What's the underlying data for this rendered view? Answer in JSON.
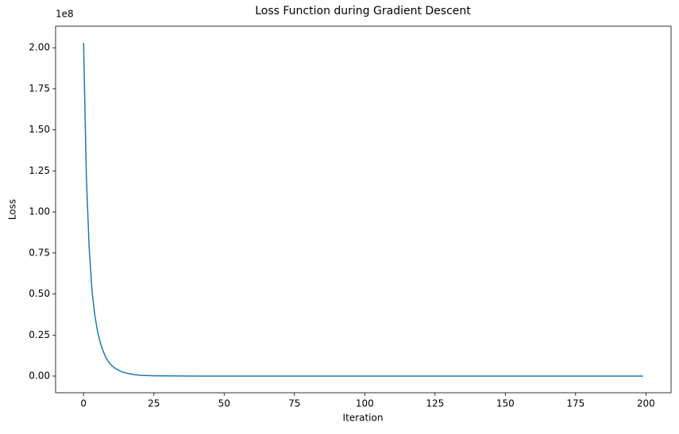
{
  "chart_data": {
    "type": "line",
    "title": "Loss Function during Gradient Descent",
    "x_label": "Iteration",
    "y_label": "Loss",
    "y_offset_label": "1e8",
    "x": [
      0,
      1,
      2,
      3,
      4,
      5,
      6,
      7,
      8,
      9,
      10,
      11,
      12,
      13,
      14,
      15,
      16,
      17,
      18,
      19,
      20,
      22,
      25,
      30,
      40,
      60,
      100,
      150,
      199
    ],
    "series": [
      {
        "name": "Loss",
        "color": "#1f77b4",
        "values": [
          2.03,
          1.21,
          0.78,
          0.52,
          0.37,
          0.27,
          0.2,
          0.15,
          0.11,
          0.085,
          0.065,
          0.05,
          0.04,
          0.031,
          0.024,
          0.019,
          0.015,
          0.012,
          0.009,
          0.007,
          0.005,
          0.0035,
          0.002,
          0.001,
          0.0002,
          0,
          0,
          0,
          0
        ]
      }
    ],
    "xlim": [
      -9.95,
      208.95
    ],
    "xticks": [
      0,
      25,
      50,
      75,
      100,
      125,
      150,
      175,
      200
    ],
    "ylim": [
      -0.1015,
      2.1315
    ],
    "yticks": [
      {
        "value": 0,
        "label": "0.00"
      },
      {
        "value": 0.25,
        "label": "0.25"
      },
      {
        "value": 0.5,
        "label": "0.50"
      },
      {
        "value": 0.75,
        "label": "0.75"
      },
      {
        "value": 1,
        "label": "1.00"
      },
      {
        "value": 1.25,
        "label": "1.25"
      },
      {
        "value": 1.5,
        "label": "1.50"
      },
      {
        "value": 1.75,
        "label": "1.75"
      },
      {
        "value": 2,
        "label": "2.00"
      }
    ]
  }
}
